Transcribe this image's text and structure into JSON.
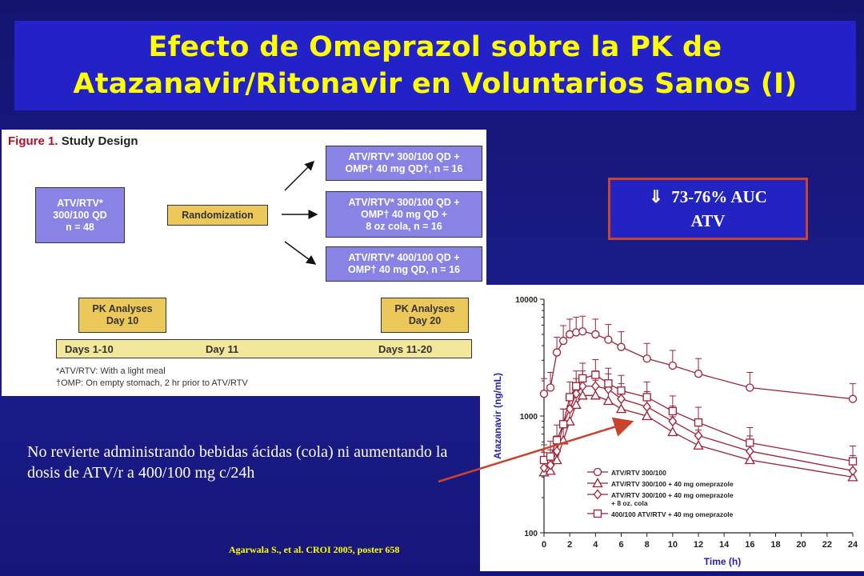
{
  "title": {
    "line1": "Efecto de Omeprazol sobre la PK de",
    "line2": "Atazanavir/Ritonavir en Voluntarios Sanos (I)"
  },
  "design": {
    "figure_label": "Figure 1.",
    "figure_title": "Study Design",
    "baseline": "ATV/RTV*\n300/100 QD\nn = 48",
    "randomization": "Randomization",
    "arm1": "ATV/RTV* 300/100 QD +\nOMP† 40 mg QD†, n = 16",
    "arm2": "ATV/RTV* 300/100 QD +\nOMP† 40 mg QD +\n8 oz cola, n = 16",
    "arm3": "ATV/RTV* 400/100 QD +\nOMP† 40 mg QD, n = 16",
    "pk1": "PK Analyses\nDay 10",
    "pk2": "PK Analyses\nDay 20",
    "timeline": [
      "Days 1-10",
      "Day 11",
      "Days 11-20"
    ],
    "footnote1": "*ATV/RTV: With a light meal",
    "footnote2": "†OMP: On empty stomach, 2 hr prior to ATV/RTV"
  },
  "auc_box": {
    "arrow": "⇓",
    "line1": "73-76% AUC",
    "line2": "ATV"
  },
  "note": "No revierte administrando bebidas ácidas (cola) ni aumentando la dosis de ATV/r a 400/100 mg c/24h",
  "citation": "Agarwala S., et al. CROI 2005, poster 658",
  "colors": {
    "series": "#9e2034",
    "title": "#ffff00",
    "accent": "#c8442c"
  },
  "chart_data": {
    "type": "line",
    "xlabel": "Time (h)",
    "ylabel": "Atazanavir (ng/mL)",
    "y_scale": "log",
    "ylim": [
      100,
      10000
    ],
    "xlim": [
      0,
      24
    ],
    "xticks": [
      0,
      2,
      4,
      6,
      8,
      10,
      12,
      14,
      16,
      18,
      20,
      22,
      24
    ],
    "yticks": [
      100,
      1000,
      10000
    ],
    "ytick_labels": [
      "100",
      "1000",
      "10000"
    ],
    "legend_position": "lower-left",
    "x": [
      0,
      0.5,
      1,
      1.5,
      2,
      2.5,
      3,
      4,
      5,
      6,
      8,
      10,
      12,
      16,
      24
    ],
    "series": [
      {
        "name": "ATV/RTV 300/100",
        "marker": "circle",
        "values": [
          1550,
          1750,
          3500,
          4400,
          5000,
          5200,
          5300,
          5000,
          4500,
          3900,
          3100,
          2700,
          2300,
          1750,
          1400
        ]
      },
      {
        "name": "ATV/RTV 300/100 + 40 mg omeprazole",
        "marker": "triangle",
        "values": [
          330,
          340,
          420,
          620,
          900,
          1250,
          1500,
          1500,
          1350,
          1150,
          1000,
          730,
          560,
          420,
          300
        ]
      },
      {
        "name": "ATV/RTV 300/100 + 40 mg omeprazole\n+ 8 oz. cola",
        "marker": "diamond",
        "values": [
          360,
          380,
          500,
          850,
          1150,
          1550,
          1800,
          1800,
          1700,
          1400,
          1200,
          900,
          680,
          500,
          340
        ]
      },
      {
        "name": "400/100 ATV/RTV + 40 mg omeprazole",
        "marker": "square",
        "values": [
          420,
          450,
          620,
          850,
          1450,
          1800,
          2100,
          2250,
          1900,
          1650,
          1450,
          1100,
          880,
          590,
          410
        ]
      }
    ]
  }
}
